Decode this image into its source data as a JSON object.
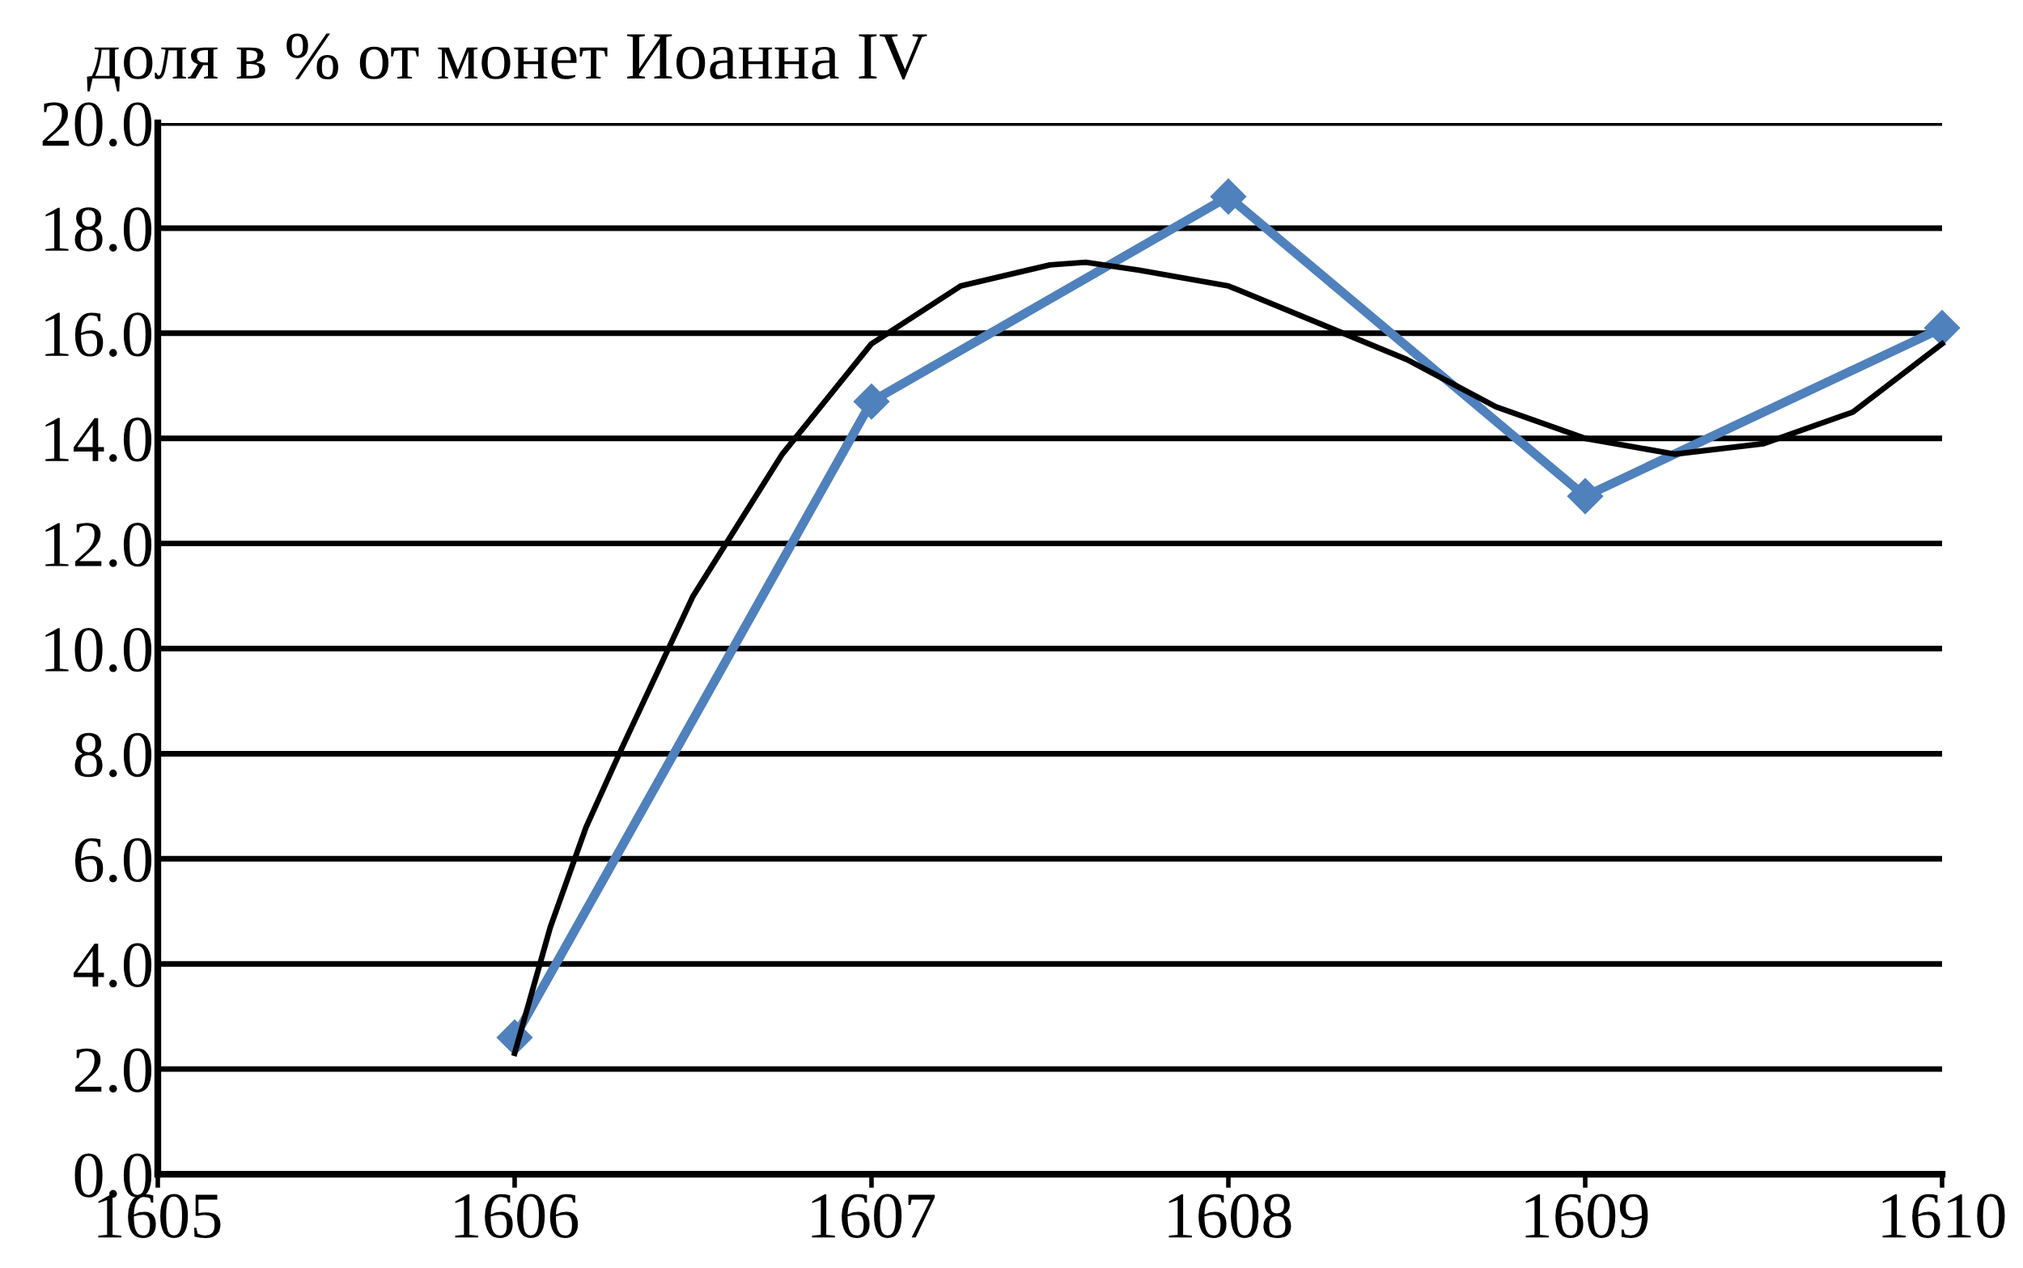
{
  "chart_data": {
    "type": "line",
    "ylabel": "доля в % от монет Иоанна IV",
    "xlim": [
      1605,
      1610
    ],
    "xticks": [
      1605,
      1606,
      1607,
      1608,
      1609,
      1610
    ],
    "ylim": [
      0,
      20
    ],
    "yticks": [
      {
        "value": 0,
        "label": "0.0"
      },
      {
        "value": 2,
        "label": "2.0"
      },
      {
        "value": 4,
        "label": "4.0"
      },
      {
        "value": 6,
        "label": "6.0"
      },
      {
        "value": 8,
        "label": "8.0"
      },
      {
        "value": 10,
        "label": "10.0"
      },
      {
        "value": 12,
        "label": "12.0"
      },
      {
        "value": 14,
        "label": "14.0"
      },
      {
        "value": 16,
        "label": "16.0"
      },
      {
        "value": 18,
        "label": "18.0"
      },
      {
        "value": 20,
        "label": "20.0"
      }
    ],
    "grid": "y",
    "series": [
      {
        "color": "#4f81bd",
        "marker": "diamond",
        "x": [
          1606,
          1607,
          1608,
          1609,
          1610
        ],
        "values": [
          2.6,
          14.7,
          18.6,
          12.9,
          16.1
        ]
      },
      {
        "color": "#000000",
        "marker": "none",
        "x": [
          1606,
          1606.1,
          1606.2,
          1606.3,
          1606.5,
          1606.75,
          1607,
          1607.25,
          1607.5,
          1607.6,
          1607.75,
          1608,
          1608.25,
          1608.5,
          1608.75,
          1609,
          1609.25,
          1609.5,
          1609.75,
          1610
        ],
        "values": [
          2.3,
          4.7,
          6.6,
          8.1,
          11.0,
          13.7,
          15.8,
          16.9,
          17.3,
          17.35,
          17.2,
          16.9,
          16.2,
          15.5,
          14.6,
          14.0,
          13.7,
          13.9,
          14.5,
          15.8
        ]
      }
    ]
  }
}
